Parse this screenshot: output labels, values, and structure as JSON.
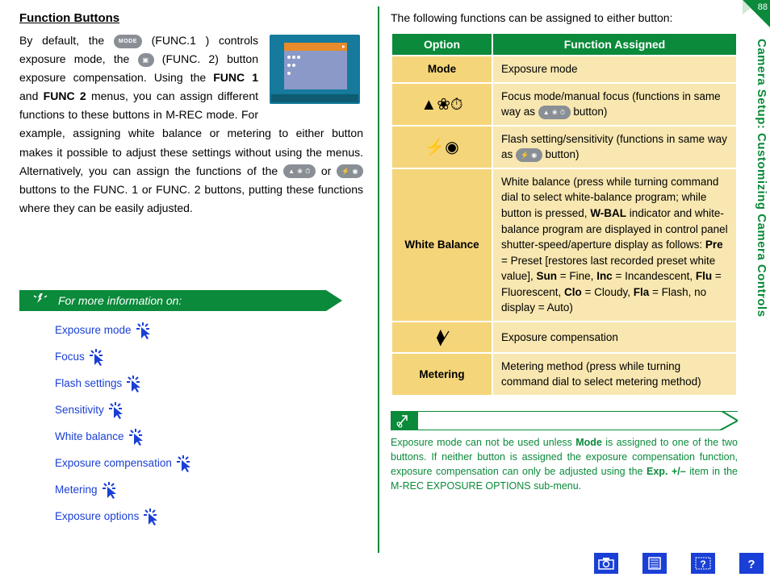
{
  "colors": {
    "green": "#0a8a3a",
    "link_blue": "#1a3fd6",
    "table_opt_bg": "#f5d57a",
    "table_desc_bg": "#f8e7b0",
    "gray_button": "#8a8f95"
  },
  "page_number": "88",
  "side_tab": "Camera Setup: Customizing Camera Controls",
  "left": {
    "title": "Function Buttons",
    "p1_a": "By default, the ",
    "p1_btn1": "MODE",
    "p1_b": " (FUNC.1 ) controls exposure mode, the ",
    "p1_btn2": "▣",
    "p1_c": " (FUNC. 2) button exposure compensation.  Using the ",
    "p1_bold1": "FUNC 1",
    "p1_d": " and ",
    "p1_bold2": "FUNC 2",
    "p1_e": " menus, you can assign different functions to these buttons in M-REC mode.  For example, assigning white balance or metering to either button makes it possible to adjust these settings without using the menus.  Alternatively, you can assign the functions of the ",
    "p1_btn3": "▲ ❀ ⏱",
    "p1_f": " or ",
    "p1_btn4": "⚡ ◉",
    "p1_g": " buttons to the FUNC. 1 or FUNC. 2 buttons, putting these functions where they can be easily adjusted.",
    "info_title": "For more information on:",
    "links": [
      "Exposure mode",
      "Focus",
      "Flash settings",
      "Sensitivity",
      "White balance",
      "Exposure compensation",
      "Metering",
      "Exposure options"
    ]
  },
  "right": {
    "intro": "The following functions can be assigned to either button:",
    "th_option": "Option",
    "th_func": "Function Assigned",
    "rows": [
      {
        "opt_text": "Mode",
        "opt_is_sym": false,
        "desc_html": "Exposure mode"
      },
      {
        "opt_text": "▲❀⏱",
        "opt_is_sym": true,
        "desc_html": "Focus mode/manual focus (functions in same way as <span class='btn-oval'>▲ ❀ ⏱</span> button)"
      },
      {
        "opt_text": "⚡◉",
        "opt_is_sym": true,
        "desc_html": "Flash setting/sensitivity (functions in same way as <span class='btn-oval'>⚡ ◉</span> button)"
      },
      {
        "opt_text": "White Balance",
        "opt_is_sym": false,
        "desc_html": "White balance (press while turning command dial to select white-balance program; while button is pressed, <b>W-BAL</b> indicator and white-balance program are displayed in control panel shutter-speed/aperture display as follows: <b>Pre</b> = Preset [restores last recorded preset white value], <b>Sun</b> = Fine, <b>Inc</b> = Incandescent, <b>Flu</b> = Fluorescent, <b>Clo</b> = Cloudy, <b>Fla</b> = Flash, no display = Auto)"
      },
      {
        "opt_text": "⧫⁄",
        "opt_is_sym": true,
        "desc_html": "Exposure compensation"
      },
      {
        "opt_text": "Metering",
        "opt_is_sym": false,
        "desc_html": "Metering method (press while turning command dial to select metering method)"
      }
    ],
    "note_a": "Exposure mode can not be used unless ",
    "note_b1": "Mode",
    "note_b": " is assigned to one of the two buttons.  If neither button is assigned the exposure compensation function, exposure compensation can only be adjusted using the ",
    "note_b2": "Exp. +/–",
    "note_c": " item in the M-REC EXPOSURE OPTIONS sub-menu."
  }
}
